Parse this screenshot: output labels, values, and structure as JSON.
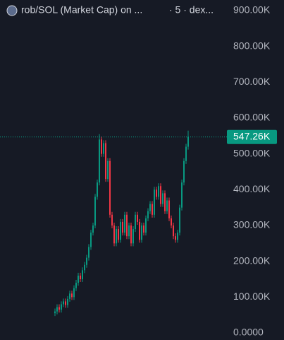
{
  "chart_data": {
    "type": "candlestick",
    "title": "rob/SOL (Market Cap) on ...",
    "subtitle": "· 5 · dex...",
    "up_color": "#089981",
    "down_color": "#f23645",
    "ylim": [
      0,
      900000
    ],
    "yticks": [
      {
        "value": 0,
        "label": "0.0000"
      },
      {
        "value": 100000,
        "label": "100.00K"
      },
      {
        "value": 200000,
        "label": "200.00K"
      },
      {
        "value": 300000,
        "label": "300.00K"
      },
      {
        "value": 400000,
        "label": "400.00K"
      },
      {
        "value": 500000,
        "label": "500.00K"
      },
      {
        "value": 600000,
        "label": "600.00K"
      },
      {
        "value": 700000,
        "label": "700.00K"
      },
      {
        "value": 800000,
        "label": "800.00K"
      },
      {
        "value": 900000,
        "label": "900.00K"
      }
    ],
    "open": [
      55000,
      60000,
      72000,
      65000,
      80000,
      88000,
      78000,
      95000,
      110000,
      100000,
      125000,
      140000,
      160000,
      150000,
      175000,
      190000,
      210000,
      240000,
      280000,
      300000,
      380000,
      420000,
      540000,
      500000,
      530000,
      430000,
      480000,
      330000,
      300000,
      250000,
      290000,
      260000,
      310000,
      280000,
      330000,
      270000,
      300000,
      250000,
      290000,
      330000,
      310000,
      260000,
      300000,
      280000,
      320000,
      340000,
      360000,
      330000,
      400000,
      380000,
      410000,
      360000,
      390000,
      340000,
      370000,
      320000,
      300000,
      270000,
      260000,
      280000,
      350000,
      420000,
      480000,
      520000
    ],
    "high": [
      68000,
      80000,
      80000,
      88000,
      96000,
      96000,
      103000,
      118000,
      118000,
      133000,
      148000,
      168000,
      168000,
      183000,
      198000,
      218000,
      248000,
      288000,
      308000,
      388000,
      428000,
      555000,
      548000,
      538000,
      538000,
      488000,
      488000,
      338000,
      308000,
      298000,
      298000,
      318000,
      318000,
      338000,
      338000,
      308000,
      308000,
      298000,
      338000,
      338000,
      318000,
      308000,
      308000,
      328000,
      348000,
      368000,
      368000,
      408000,
      408000,
      418000,
      418000,
      398000,
      398000,
      378000,
      378000,
      328000,
      308000,
      278000,
      288000,
      358000,
      428000,
      488000,
      528000,
      565000
    ],
    "low": [
      47000,
      52000,
      57000,
      57000,
      72000,
      70000,
      70000,
      87000,
      92000,
      92000,
      117000,
      132000,
      142000,
      142000,
      167000,
      182000,
      202000,
      232000,
      272000,
      292000,
      372000,
      412000,
      492000,
      492000,
      422000,
      422000,
      322000,
      292000,
      242000,
      242000,
      252000,
      252000,
      272000,
      272000,
      262000,
      262000,
      242000,
      242000,
      282000,
      302000,
      252000,
      252000,
      272000,
      272000,
      312000,
      332000,
      322000,
      322000,
      372000,
      372000,
      352000,
      352000,
      332000,
      332000,
      312000,
      292000,
      262000,
      252000,
      252000,
      272000,
      342000,
      412000,
      472000,
      512000
    ],
    "close": [
      60000,
      72000,
      65000,
      80000,
      88000,
      78000,
      95000,
      110000,
      100000,
      125000,
      140000,
      160000,
      150000,
      175000,
      190000,
      210000,
      240000,
      280000,
      300000,
      380000,
      420000,
      540000,
      500000,
      530000,
      430000,
      480000,
      330000,
      300000,
      250000,
      290000,
      260000,
      310000,
      280000,
      330000,
      270000,
      300000,
      250000,
      290000,
      330000,
      310000,
      260000,
      300000,
      280000,
      320000,
      340000,
      360000,
      330000,
      400000,
      380000,
      410000,
      360000,
      390000,
      340000,
      370000,
      320000,
      300000,
      270000,
      260000,
      280000,
      350000,
      420000,
      480000,
      520000,
      547260
    ],
    "last_price": 547260,
    "last_price_label": "547.26K"
  }
}
